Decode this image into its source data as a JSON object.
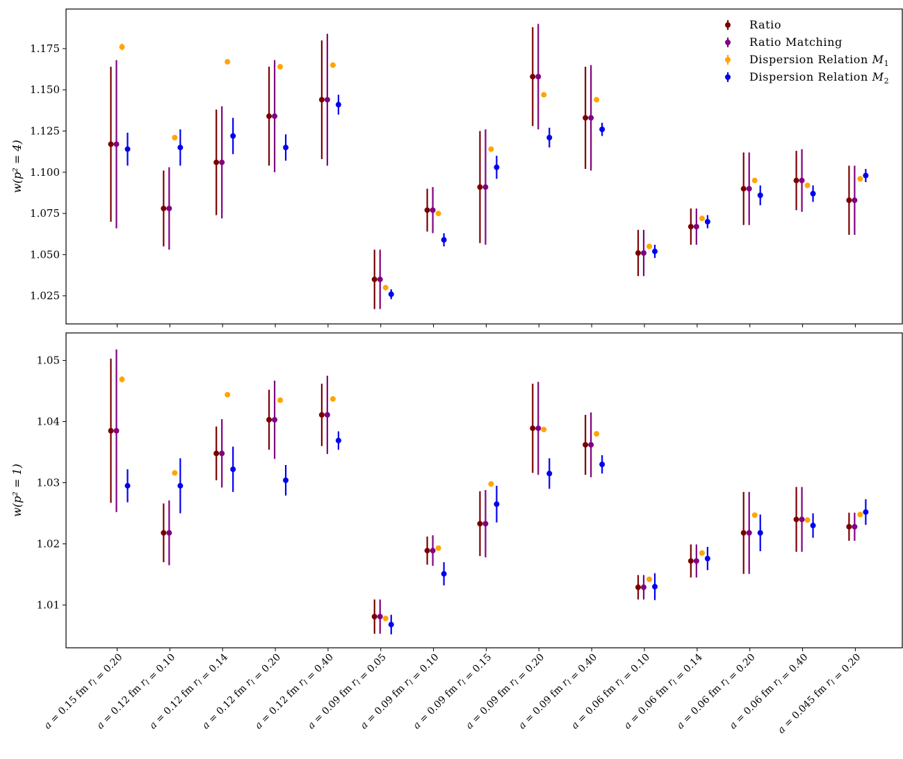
{
  "chart_data": {
    "type": "scatter",
    "categories": [
      "a = 0.15 fm r_l = 0.20",
      "a = 0.12 fm r_l = 0.10",
      "a = 0.12 fm r_l = 0.14",
      "a = 0.12 fm r_l = 0.20",
      "a = 0.12 fm r_l = 0.40",
      "a = 0.09 fm r_l = 0.05",
      "a = 0.09 fm r_l = 0.10",
      "a = 0.09 fm r_l = 0.15",
      "a = 0.09 fm r_l = 0.20",
      "a = 0.09 fm r_l = 0.40",
      "a = 0.06 fm r_l = 0.10",
      "a = 0.06 fm r_l = 0.14",
      "a = 0.06 fm r_l = 0.20",
      "a = 0.06 fm r_l = 0.40",
      "a = 0.045 fm r_l = 0.20"
    ],
    "legend": {
      "position": "top-right",
      "entries": [
        "Ratio",
        "Ratio Matching",
        "Dispersion Relation M1",
        "Dispersion Relation M2"
      ]
    },
    "colors": [
      "#7a0000",
      "#800080",
      "#ffa500",
      "#0000ee"
    ],
    "panels": [
      {
        "ylabel": "w(p² = 4)",
        "ylim": [
          1.008,
          1.199
        ],
        "yticks": [
          "1.025",
          "1.050",
          "1.075",
          "1.100",
          "1.125",
          "1.150",
          "1.175"
        ],
        "series": [
          {
            "name": "Ratio",
            "values": [
              1.117,
              1.078,
              1.106,
              1.134,
              1.144,
              1.035,
              1.077,
              1.091,
              1.158,
              1.133,
              1.051,
              1.067,
              1.09,
              1.095,
              1.083
            ],
            "errors": [
              0.047,
              0.023,
              0.032,
              0.03,
              0.036,
              0.018,
              0.013,
              0.034,
              0.03,
              0.031,
              0.014,
              0.011,
              0.022,
              0.018,
              0.021
            ]
          },
          {
            "name": "Ratio Matching",
            "values": [
              1.117,
              1.078,
              1.106,
              1.134,
              1.144,
              1.035,
              1.077,
              1.091,
              1.158,
              1.133,
              1.051,
              1.067,
              1.09,
              1.095,
              1.083
            ],
            "errors": [
              0.051,
              0.025,
              0.034,
              0.034,
              0.04,
              0.018,
              0.014,
              0.035,
              0.032,
              0.032,
              0.014,
              0.011,
              0.022,
              0.019,
              0.021
            ]
          },
          {
            "name": "Dispersion Relation M1",
            "values": [
              1.176,
              1.121,
              1.167,
              1.164,
              1.165,
              1.03,
              1.075,
              1.114,
              1.147,
              1.144,
              1.055,
              1.072,
              1.095,
              1.092,
              1.096
            ],
            "errors": [
              0.002,
              0.0005,
              0.0005,
              0.0005,
              0.0005,
              0.0005,
              0.0005,
              0.0005,
              0.0005,
              0.0005,
              0.0005,
              0.0005,
              0.0005,
              0.0005,
              0.0005
            ]
          },
          {
            "name": "Dispersion Relation M2",
            "values": [
              1.114,
              1.115,
              1.122,
              1.115,
              1.141,
              1.026,
              1.059,
              1.103,
              1.121,
              1.126,
              1.052,
              1.07,
              1.086,
              1.087,
              1.098
            ],
            "errors": [
              0.01,
              0.011,
              0.011,
              0.008,
              0.006,
              0.003,
              0.004,
              0.007,
              0.006,
              0.004,
              0.004,
              0.004,
              0.006,
              0.005,
              0.004
            ]
          }
        ]
      },
      {
        "ylabel": "w(p² = 1)",
        "ylim": [
          1.003,
          1.0545
        ],
        "yticks": [
          "1.01",
          "1.02",
          "1.03",
          "1.04",
          "1.05"
        ],
        "series": [
          {
            "name": "Ratio",
            "values": [
              1.0385,
              1.0218,
              1.0348,
              1.0403,
              1.0411,
              1.0081,
              1.0189,
              1.0233,
              1.0389,
              1.0362,
              1.0129,
              1.0172,
              1.0218,
              1.024,
              1.0228
            ],
            "errors": [
              0.0118,
              0.0048,
              0.0044,
              0.0049,
              0.0051,
              0.0028,
              0.0023,
              0.0053,
              0.0073,
              0.0049,
              0.002,
              0.0027,
              0.0067,
              0.0053,
              0.0023
            ]
          },
          {
            "name": "Ratio Matching",
            "values": [
              1.0385,
              1.0218,
              1.0348,
              1.0403,
              1.0411,
              1.0081,
              1.0189,
              1.0233,
              1.0389,
              1.0362,
              1.0129,
              1.0172,
              1.0218,
              1.024,
              1.0228
            ],
            "errors": [
              0.0133,
              0.0053,
              0.0056,
              0.0064,
              0.0064,
              0.0028,
              0.0025,
              0.0055,
              0.0076,
              0.0053,
              0.002,
              0.0027,
              0.0067,
              0.0053,
              0.0023
            ]
          },
          {
            "name": "Dispersion Relation M1",
            "values": [
              1.0469,
              1.0316,
              1.0444,
              1.0435,
              1.0437,
              1.0078,
              1.0193,
              1.0298,
              1.0387,
              1.038,
              1.0142,
              1.0185,
              1.0247,
              1.0239,
              1.0248
            ],
            "errors": [
              0.0005,
              0.0002,
              0.0002,
              0.0002,
              0.0002,
              0.0002,
              0.0002,
              0.0002,
              0.0002,
              0.0002,
              0.0002,
              0.0002,
              0.0002,
              0.0002,
              0.0002
            ]
          },
          {
            "name": "Dispersion Relation M2",
            "values": [
              1.0295,
              1.0295,
              1.0322,
              1.0304,
              1.0369,
              1.0068,
              1.0151,
              1.0265,
              1.0315,
              1.033,
              1.013,
              1.0176,
              1.0218,
              1.023,
              1.0252
            ],
            "errors": [
              0.0027,
              0.0045,
              0.0037,
              0.0025,
              0.0015,
              0.0016,
              0.0019,
              0.003,
              0.0025,
              0.0015,
              0.0022,
              0.0019,
              0.003,
              0.002,
              0.0021
            ]
          }
        ]
      }
    ]
  }
}
